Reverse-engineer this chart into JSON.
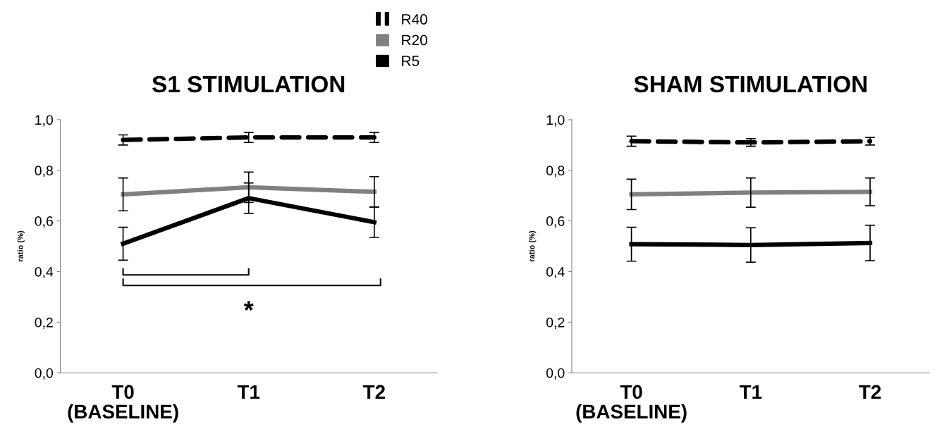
{
  "chart_data": [
    {
      "type": "line",
      "title": "S1 STIMULATION",
      "ylabel": "ratio (%)",
      "categories": [
        "T0\n(BASELINE)",
        "T1",
        "T2"
      ],
      "ylim": [
        0,
        1
      ],
      "yticks": [
        {
          "value": 0,
          "label": "0,0"
        },
        {
          "value": 0.2,
          "label": "0,2"
        },
        {
          "value": 0.4,
          "label": "0,4"
        },
        {
          "value": 0.6,
          "label": "0,6"
        },
        {
          "value": 0.8,
          "label": "0,8"
        },
        {
          "value": 1,
          "label": "1,0"
        }
      ],
      "legend": "top",
      "annotations": [
        "*"
      ],
      "series": [
        {
          "name": "R40",
          "color": "#000000",
          "line_style": "dashed",
          "values": [
            0.92,
            0.93,
            0.93
          ],
          "errors": [
            0.02,
            0.02,
            0.02
          ]
        },
        {
          "name": "R20",
          "color": "#808080",
          "line_style": "solid",
          "values": [
            0.705,
            0.733,
            0.715
          ],
          "errors": [
            0.065,
            0.06,
            0.06
          ]
        },
        {
          "name": "R5",
          "color": "#000000",
          "line_style": "solid",
          "values": [
            0.51,
            0.69,
            0.595
          ],
          "errors": [
            0.065,
            0.06,
            0.06
          ]
        }
      ]
    },
    {
      "type": "line",
      "title": "SHAM STIMULATION",
      "ylabel": "ratio (%)",
      "categories": [
        "T0\n(BASELINE)",
        "T1",
        "T2"
      ],
      "ylim": [
        0,
        1
      ],
      "yticks": [
        {
          "value": 0,
          "label": "0,0"
        },
        {
          "value": 0.2,
          "label": "0,2"
        },
        {
          "value": 0.4,
          "label": "0,4"
        },
        {
          "value": 0.6,
          "label": "0,6"
        },
        {
          "value": 0.8,
          "label": "0,8"
        },
        {
          "value": 1,
          "label": "1,0"
        }
      ],
      "series": [
        {
          "color": "#000000",
          "line_style": "dashed",
          "values": [
            0.915,
            0.91,
            0.915
          ],
          "errors": [
            0.02,
            0.015,
            0.015
          ]
        },
        {
          "color": "#808080",
          "line_style": "solid",
          "values": [
            0.705,
            0.712,
            0.715
          ],
          "errors": [
            0.06,
            0.058,
            0.055
          ]
        },
        {
          "color": "#000000",
          "line_style": "solid",
          "values": [
            0.508,
            0.505,
            0.513
          ],
          "errors": [
            0.067,
            0.068,
            0.07
          ]
        }
      ]
    }
  ]
}
